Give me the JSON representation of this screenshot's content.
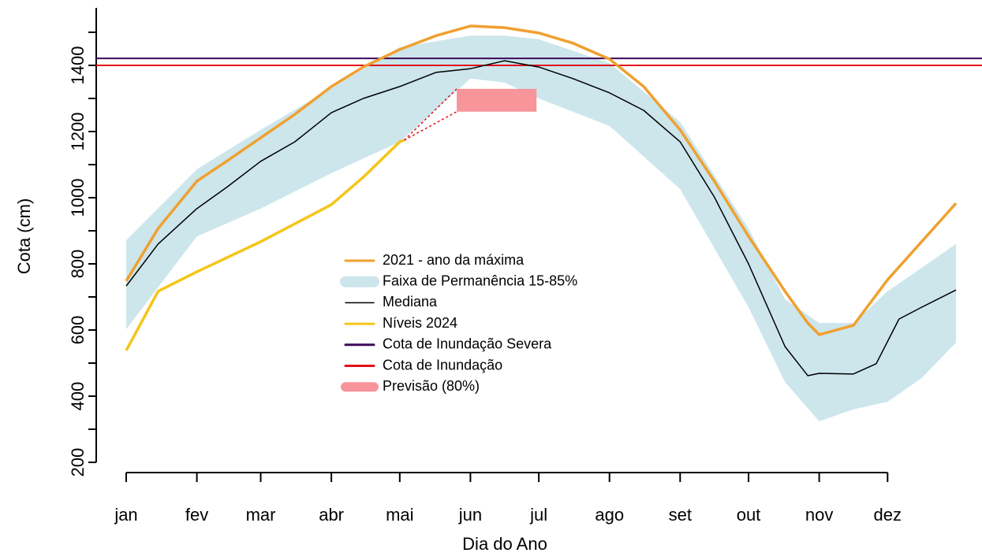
{
  "chart_data": {
    "type": "line",
    "xlabel": "Dia do Ano",
    "ylabel": "Cota (cm)",
    "xlim": [
      1,
      365
    ],
    "ylim": [
      200,
      1500
    ],
    "xticks": [
      {
        "value": 1,
        "label": "jan"
      },
      {
        "value": 32,
        "label": "fev"
      },
      {
        "value": 60,
        "label": "mar"
      },
      {
        "value": 91,
        "label": "abr"
      },
      {
        "value": 121,
        "label": "mai"
      },
      {
        "value": 152,
        "label": "jun"
      },
      {
        "value": 182,
        "label": "jul"
      },
      {
        "value": 213,
        "label": "ago"
      },
      {
        "value": 244,
        "label": "set"
      },
      {
        "value": 274,
        "label": "out"
      },
      {
        "value": 305,
        "label": "nov"
      },
      {
        "value": 335,
        "label": "dez"
      }
    ],
    "yticks": [
      200,
      400,
      600,
      800,
      1000,
      1200,
      1400
    ],
    "yminor": [
      300,
      500,
      700,
      900,
      1100,
      1300,
      1500
    ],
    "series": [
      {
        "name": "2021 - ano da máxima",
        "color": "#f0a030",
        "x": [
          1,
          15,
          32,
          45,
          60,
          75,
          91,
          105,
          121,
          137,
          152,
          167,
          182,
          197,
          213,
          228,
          244,
          259,
          274,
          290,
          300,
          305,
          320,
          335,
          365
        ],
        "values": [
          748,
          907,
          1050,
          1110,
          1181,
          1252,
          1336,
          1395,
          1448,
          1490,
          1519,
          1514,
          1498,
          1467,
          1419,
          1336,
          1205,
          1050,
          883,
          717,
          621,
          586,
          614,
          752,
          983
        ]
      },
      {
        "name": "Faixa de Permanência 15-85%",
        "color": "#cce6ec",
        "x": [
          1,
          32,
          60,
          91,
          121,
          152,
          167,
          182,
          213,
          244,
          274,
          290,
          305,
          320,
          335,
          350,
          365
        ],
        "upper": [
          871,
          1086,
          1205,
          1331,
          1455,
          1490,
          1490,
          1479,
          1407,
          1229,
          907,
          693,
          621,
          621,
          717,
          788,
          860
        ],
        "lower": [
          602,
          883,
          967,
          1074,
          1169,
          1360,
          1348,
          1300,
          1217,
          1026,
          669,
          443,
          324,
          360,
          383,
          455,
          562
        ]
      },
      {
        "name": "Mediana",
        "color": "#000000",
        "x": [
          1,
          15,
          32,
          45,
          60,
          75,
          91,
          105,
          121,
          137,
          152,
          167,
          182,
          197,
          213,
          228,
          244,
          259,
          274,
          290,
          300,
          305,
          320,
          330,
          340,
          350,
          365
        ],
        "values": [
          733,
          860,
          967,
          1031,
          1110,
          1169,
          1257,
          1300,
          1336,
          1379,
          1390,
          1414,
          1395,
          1360,
          1317,
          1264,
          1169,
          1002,
          800,
          550,
          462,
          469,
          467,
          498,
          633,
          669,
          721
        ]
      },
      {
        "name": "Níveis 2024",
        "color": "#f5c518",
        "x": [
          1,
          15,
          32,
          60,
          91,
          105,
          121,
          123
        ],
        "values": [
          538,
          717,
          776,
          867,
          979,
          1062,
          1169,
          1174
        ]
      },
      {
        "name": "Cota de Inundação Severa",
        "color": "#3d0a5c",
        "value": 1421
      },
      {
        "name": "Cota de Inundação",
        "color": "#e3101a",
        "value": 1400
      },
      {
        "name": "Previsão (80%)",
        "color": "#f7959a",
        "x": [
          146,
          181
        ],
        "low": 1260,
        "high": 1329
      }
    ]
  }
}
